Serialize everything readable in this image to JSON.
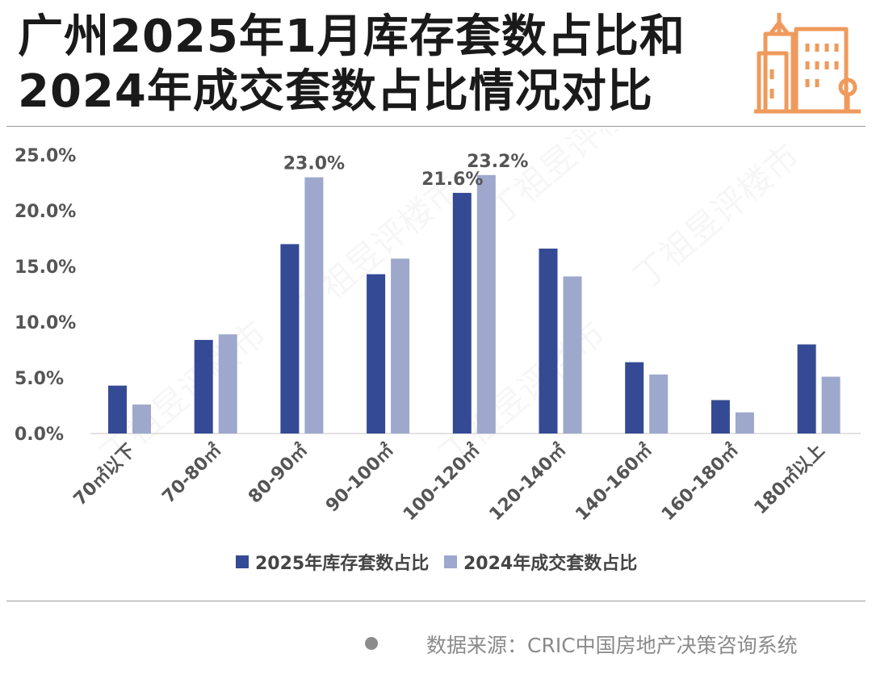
{
  "title_lines": [
    "广州2025年1月库存套数占比和",
    "2024年成交套数占比情况对比"
  ],
  "source": "数据来源：CRIC中国房地产决策咨询系统",
  "logo_icon": "city-buildings-icon",
  "watermark_text": "丁祖昱评楼市",
  "colors": {
    "series_2025": "#354a94",
    "series_2024": "#9ea8cc",
    "title": "#1a1a1a",
    "logo": "#ef9a5c",
    "axis_text": "#555555"
  },
  "chart_data": {
    "type": "bar",
    "categories": [
      "70㎡以下",
      "70-80㎡",
      "80-90㎡",
      "90-100㎡",
      "100-120㎡",
      "120-140㎡",
      "140-160㎡",
      "160-180㎡",
      "180㎡以上"
    ],
    "series": [
      {
        "name": "2025年库存套数占比",
        "values": [
          4.3,
          8.4,
          17.0,
          14.3,
          21.6,
          16.6,
          6.4,
          3.0,
          8.0
        ]
      },
      {
        "name": "2024年成交套数占比",
        "values": [
          2.6,
          8.9,
          23.0,
          15.7,
          23.2,
          14.1,
          5.3,
          1.9,
          5.1
        ]
      }
    ],
    "data_labels": [
      {
        "series": 1,
        "index": 2,
        "text": "23.0%"
      },
      {
        "series": 0,
        "index": 4,
        "text": "21.6%"
      },
      {
        "series": 1,
        "index": 4,
        "text": "23.2%"
      }
    ],
    "ylim": [
      0,
      25
    ],
    "yticks": [
      "0.0%",
      "5.0%",
      "10.0%",
      "15.0%",
      "20.0%",
      "25.0%"
    ],
    "grid": false,
    "legend_position": "bottom"
  }
}
